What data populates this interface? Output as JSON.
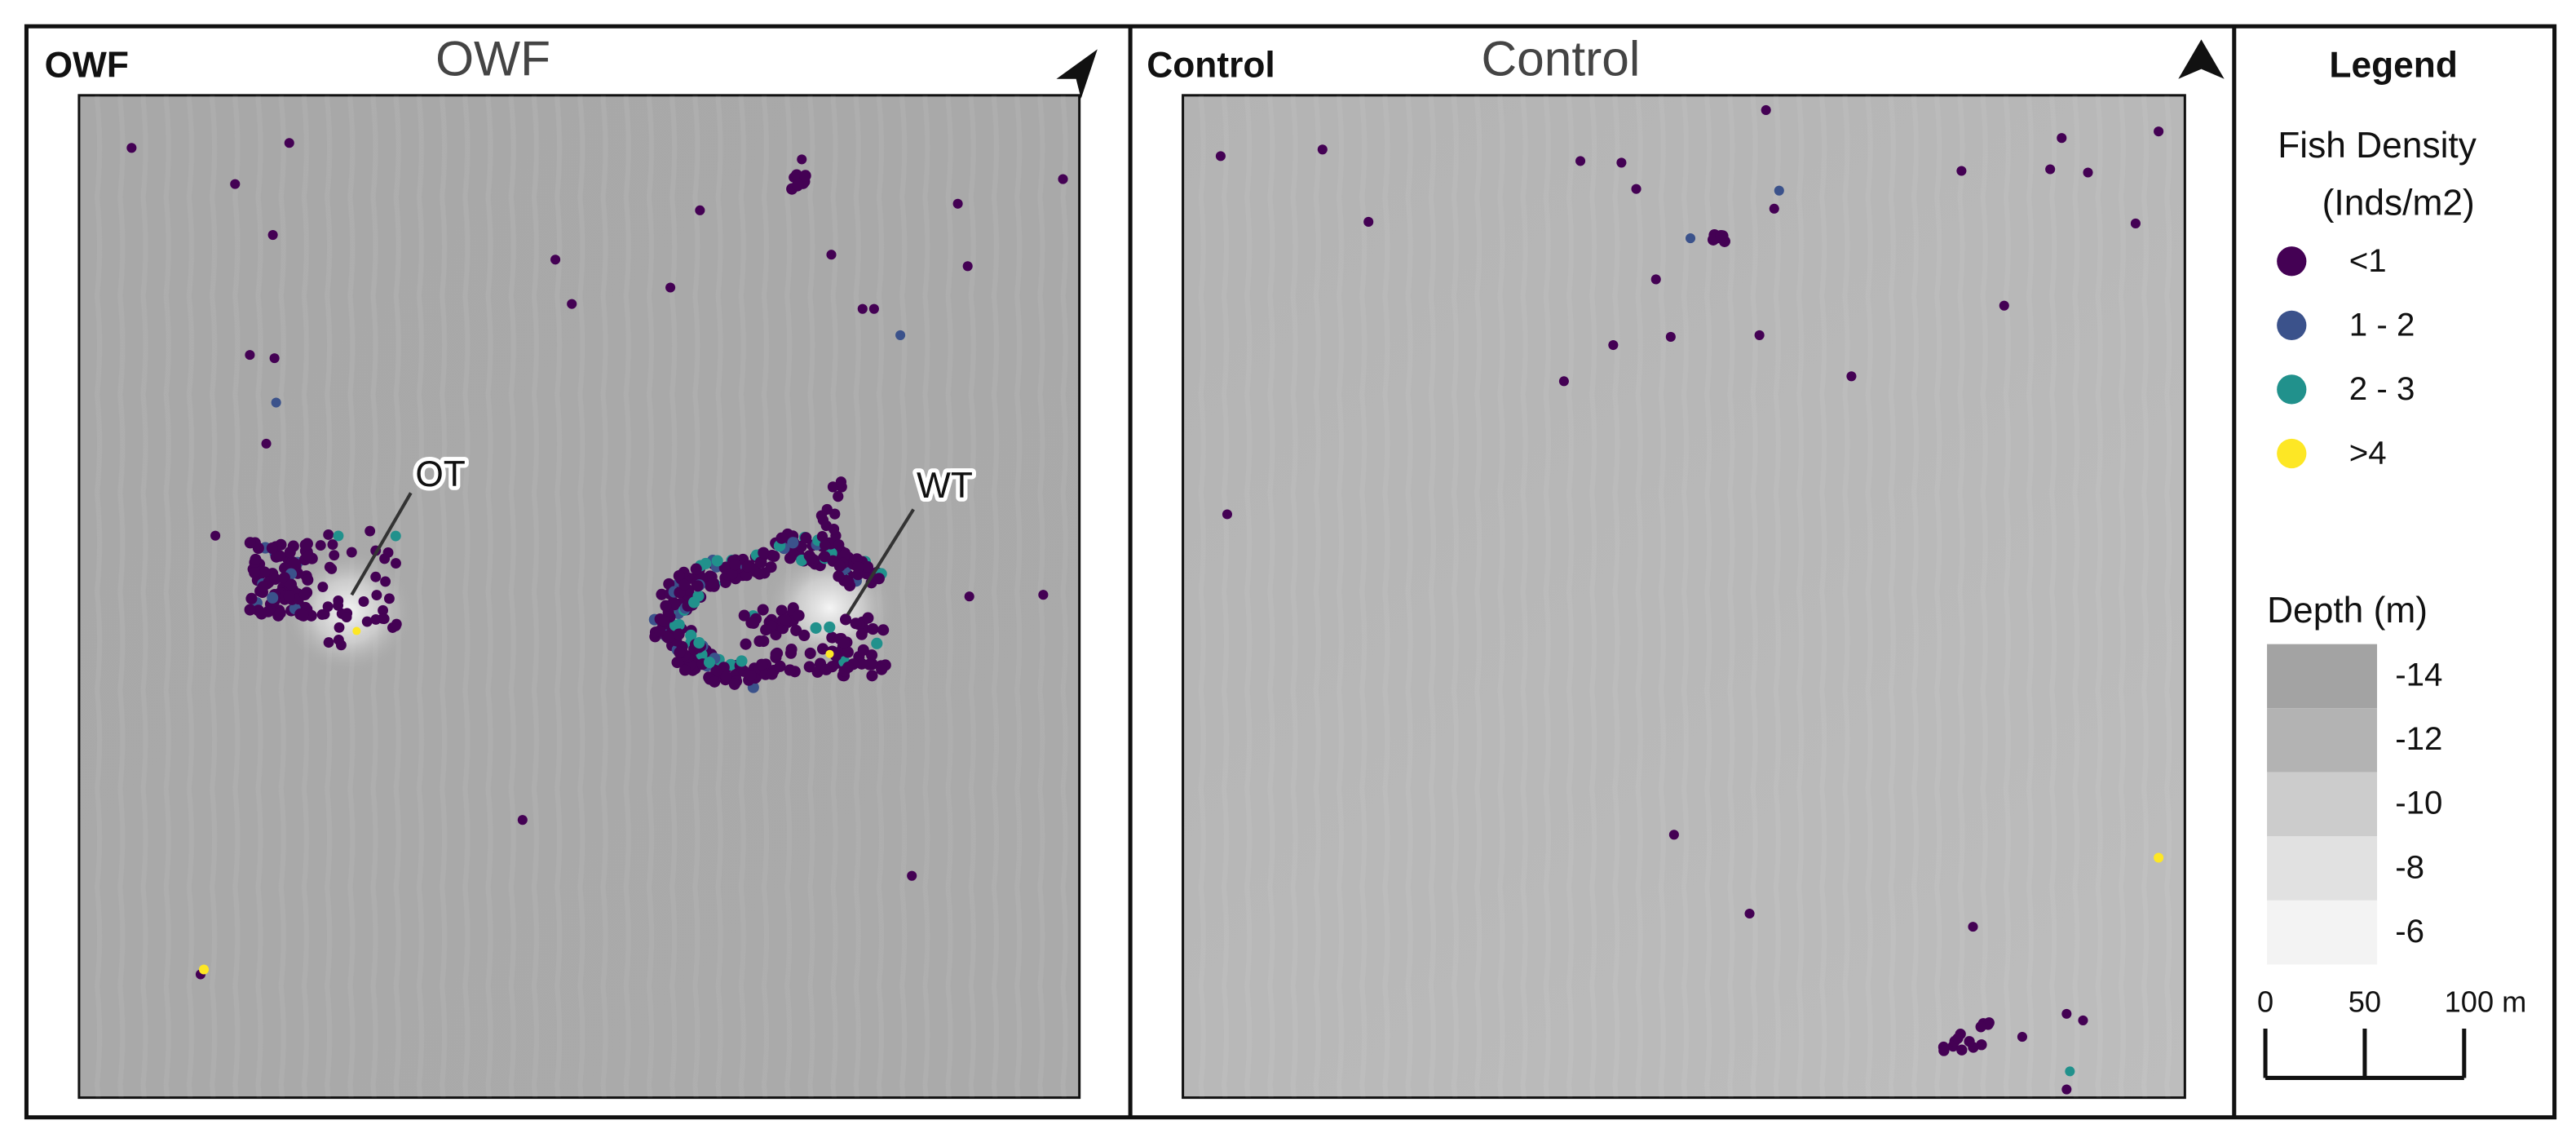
{
  "panels": [
    {
      "label": "OWF",
      "title": "OWF",
      "annotations": [
        "OT",
        "WT"
      ]
    },
    {
      "label": "Control",
      "title": "Control"
    }
  ],
  "legend": {
    "title": "Legend",
    "fish_density": {
      "title": [
        "Fish Density",
        "(Inds/m2)"
      ],
      "classes": [
        {
          "label": "<1",
          "color": "#440154"
        },
        {
          "label": "1 - 2",
          "color": "#3b528b"
        },
        {
          "label": "2 - 3",
          "color": "#21918c"
        },
        {
          "label": ">4",
          "color": "#fde725"
        }
      ]
    },
    "depth": {
      "title": "Depth (m)",
      "classes": [
        {
          "value": -14,
          "color": "#a3a3a3"
        },
        {
          "value": -12,
          "color": "#b3b3b3"
        },
        {
          "value": -10,
          "color": "#cccccc"
        },
        {
          "value": -8,
          "color": "#e1e1e1"
        },
        {
          "value": -6,
          "color": "#f3f3f3"
        }
      ]
    },
    "scale_bar": {
      "ticks": [
        0,
        50,
        {
          "value": 100,
          "label": "100 m"
        }
      ]
    }
  }
}
